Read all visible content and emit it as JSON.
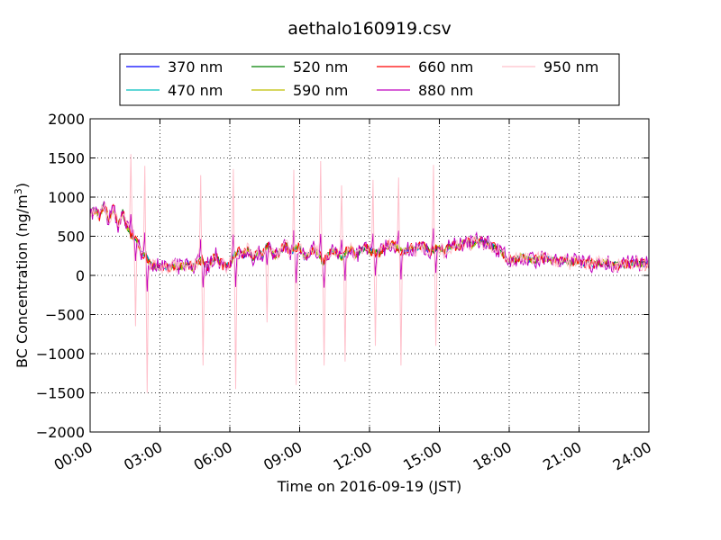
{
  "chart_data": {
    "type": "line",
    "title": "aethalo160919.csv",
    "xlabel": "Time on 2016-09-19 (JST)",
    "ylabel": "BC Concentration (ng/m3)",
    "ylabel_main": "BC Concentration (ng/m",
    "ylabel_sup": "3",
    "ylabel_end": ")",
    "x_ticks": [
      "00:00",
      "03:00",
      "06:00",
      "09:00",
      "12:00",
      "15:00",
      "18:00",
      "21:00",
      "24:00"
    ],
    "y_ticks": [
      "2000",
      "1500",
      "1000",
      "500",
      "0",
      "−500",
      "−1000",
      "−1500",
      "−2000"
    ],
    "xlim": [
      0,
      24
    ],
    "ylim": [
      -2000,
      2000
    ],
    "grid": true,
    "legend_placement": "top-center, above plot",
    "base_series": {
      "x": [
        0.0,
        0.2,
        0.4,
        0.6,
        0.8,
        1.0,
        1.2,
        1.4,
        1.6,
        1.8,
        2.0,
        2.2,
        2.4,
        2.6,
        2.8,
        3.0,
        3.2,
        3.4,
        3.6,
        3.8,
        4.0,
        4.2,
        4.4,
        4.6,
        4.8,
        5.0,
        5.2,
        5.4,
        5.6,
        5.8,
        6.0,
        6.2,
        6.4,
        6.6,
        6.8,
        7.0,
        7.2,
        7.4,
        7.6,
        7.8,
        8.0,
        8.2,
        8.4,
        8.6,
        8.8,
        9.0,
        9.2,
        9.4,
        9.6,
        9.8,
        10.0,
        10.2,
        10.4,
        10.6,
        10.8,
        11.0,
        11.2,
        11.4,
        11.6,
        11.8,
        12.0,
        12.2,
        12.4,
        12.6,
        12.8,
        13.0,
        13.2,
        13.4,
        13.6,
        13.8,
        14.0,
        14.2,
        14.4,
        14.6,
        14.8,
        15.0,
        15.2,
        15.4,
        15.6,
        15.8,
        16.0,
        16.2,
        16.4,
        16.6,
        16.8,
        17.0,
        17.2,
        17.4,
        17.6,
        17.8,
        18.0,
        18.2,
        18.4,
        18.6,
        18.8,
        19.0,
        19.2,
        19.4,
        19.6,
        19.8,
        20.0,
        20.2,
        20.4,
        20.6,
        20.8,
        21.0,
        21.2,
        21.4,
        21.6,
        21.8,
        22.0,
        22.2,
        22.4,
        22.6,
        22.8,
        23.0,
        23.2,
        23.4,
        23.6,
        23.8,
        24.0
      ],
      "y": [
        800,
        820,
        760,
        900,
        700,
        850,
        650,
        800,
        600,
        500,
        450,
        300,
        250,
        150,
        120,
        100,
        110,
        90,
        130,
        100,
        120,
        150,
        100,
        160,
        200,
        110,
        180,
        250,
        150,
        120,
        130,
        280,
        300,
        250,
        350,
        220,
        300,
        260,
        380,
        300,
        250,
        320,
        400,
        280,
        330,
        360,
        240,
        260,
        340,
        290,
        150,
        250,
        320,
        270,
        220,
        300,
        330,
        260,
        310,
        350,
        320,
        300,
        280,
        340,
        380,
        400,
        360,
        300,
        320,
        350,
        330,
        380,
        360,
        300,
        340,
        350,
        300,
        360,
        380,
        370,
        400,
        420,
        390,
        450,
        430,
        410,
        380,
        350,
        300,
        250,
        200,
        180,
        220,
        240,
        210,
        190,
        200,
        230,
        210,
        200,
        180,
        170,
        190,
        160,
        180,
        170,
        150,
        160,
        140,
        170,
        150,
        160,
        140,
        130,
        150,
        140,
        160,
        170,
        150,
        140,
        150
      ]
    },
    "series": [
      {
        "name": "370 nm",
        "color": "#0000ff",
        "jitter": 35,
        "spikeScale": 0
      },
      {
        "name": "470 nm",
        "color": "#00bfbf",
        "jitter": 40,
        "spikeScale": 0
      },
      {
        "name": "520 nm",
        "color": "#008000",
        "jitter": 45,
        "spikeScale": 0
      },
      {
        "name": "590 nm",
        "color": "#bfbf00",
        "jitter": 50,
        "spikeScale": 0
      },
      {
        "name": "660 nm",
        "color": "#ff0000",
        "jitter": 70,
        "spikeScale": 0
      },
      {
        "name": "880 nm",
        "color": "#bf00bf",
        "jitter": 110,
        "spikeScale": 0.25
      },
      {
        "name": "950 nm",
        "color": "#ffc0cb",
        "jitter": 90,
        "spikeScale": 1
      }
    ],
    "spikes_950nm": [
      {
        "x": 1.75,
        "y": 1550
      },
      {
        "x": 1.95,
        "y": -650
      },
      {
        "x": 2.35,
        "y": 1400
      },
      {
        "x": 2.45,
        "y": -1500
      },
      {
        "x": 4.75,
        "y": 1280
      },
      {
        "x": 4.85,
        "y": -1150
      },
      {
        "x": 6.15,
        "y": 1360
      },
      {
        "x": 6.25,
        "y": -1450
      },
      {
        "x": 7.6,
        "y": -600
      },
      {
        "x": 8.75,
        "y": 1350
      },
      {
        "x": 8.85,
        "y": -1400
      },
      {
        "x": 9.9,
        "y": 1460
      },
      {
        "x": 10.05,
        "y": -1150
      },
      {
        "x": 10.8,
        "y": 1150
      },
      {
        "x": 10.95,
        "y": -1100
      },
      {
        "x": 12.15,
        "y": 1220
      },
      {
        "x": 12.25,
        "y": -900
      },
      {
        "x": 13.25,
        "y": 1250
      },
      {
        "x": 13.35,
        "y": -1150
      },
      {
        "x": 14.75,
        "y": 1410
      },
      {
        "x": 14.85,
        "y": -900
      }
    ]
  }
}
